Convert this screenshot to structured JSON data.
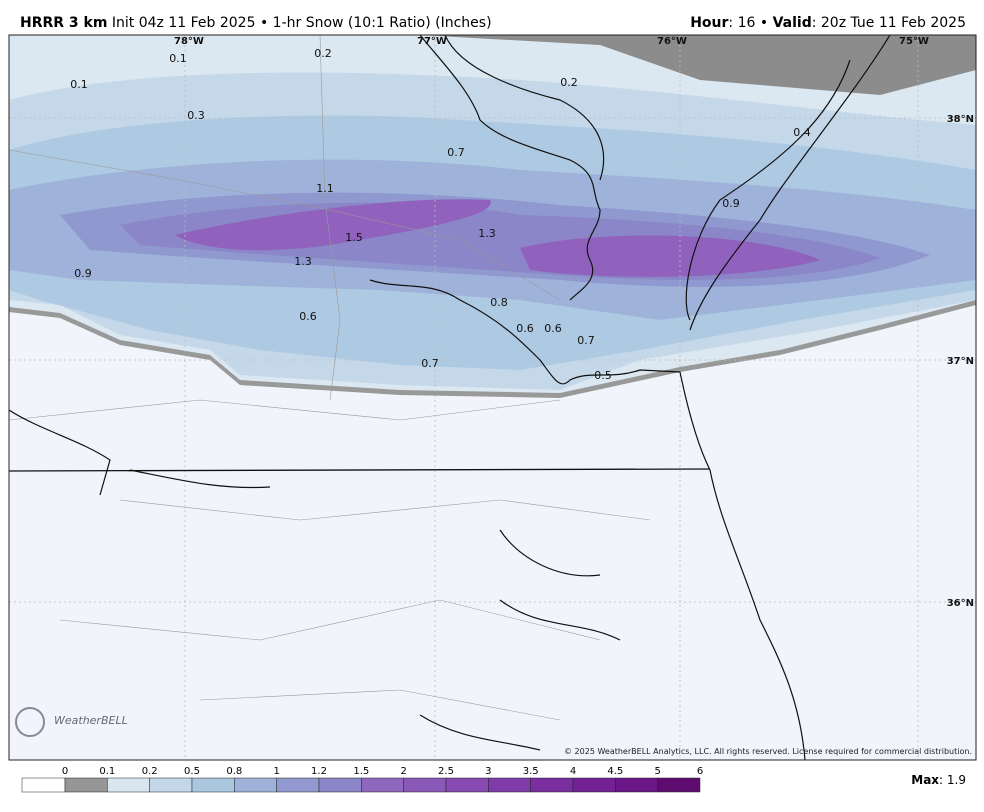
{
  "header": {
    "model": "HRRR 3 km",
    "init": "Init 04z 11 Feb 2025",
    "separator": "•",
    "product": "1-hr Snow (10:1 Ratio) (Inches)",
    "hour_label": "Hour",
    "hour_value": ": 16 •",
    "valid_label": "Valid",
    "valid_value": ": 20z Tue 11 Feb 2025"
  },
  "map": {
    "lon_labels": [
      "78°W",
      "77°W",
      "76°W",
      "75°W"
    ],
    "lat_labels": [
      "38°N",
      "37°N",
      "36°N"
    ],
    "point_labels": [
      "0.1",
      "0.2",
      "0.1",
      "0.3",
      "0.2",
      "0.4",
      "0.7",
      "1.1",
      "0.9",
      "1.5",
      "1.3",
      "1.3",
      "0.9",
      "0.8",
      "0.6",
      "0.6",
      "0.6",
      "0.7",
      "0.7",
      "0.5"
    ],
    "logo": "WeatherBELL",
    "copyright": "© 2025 WeatherBELL Analytics, LLC. All rights reserved. License required for commercial distribution."
  },
  "legend": {
    "ticks": [
      "0",
      "0.1",
      "0.2",
      "0.5",
      "0.8",
      "1",
      "1.2",
      "1.5",
      "2",
      "2.5",
      "3",
      "3.5",
      "4",
      "4.5",
      "5",
      "6"
    ],
    "colors": [
      "#ffffff",
      "#969696",
      "#d8e6f0",
      "#c3d7e8",
      "#abc7e0",
      "#9fb2da",
      "#9199d0",
      "#8a86c7",
      "#8f67bd",
      "#8a58b6",
      "#864ab0",
      "#7f3ca8",
      "#7a2ea0",
      "#732296",
      "#6b1788",
      "#5f0c70"
    ]
  },
  "max": {
    "label": "Max",
    "value": ": 1.9"
  }
}
